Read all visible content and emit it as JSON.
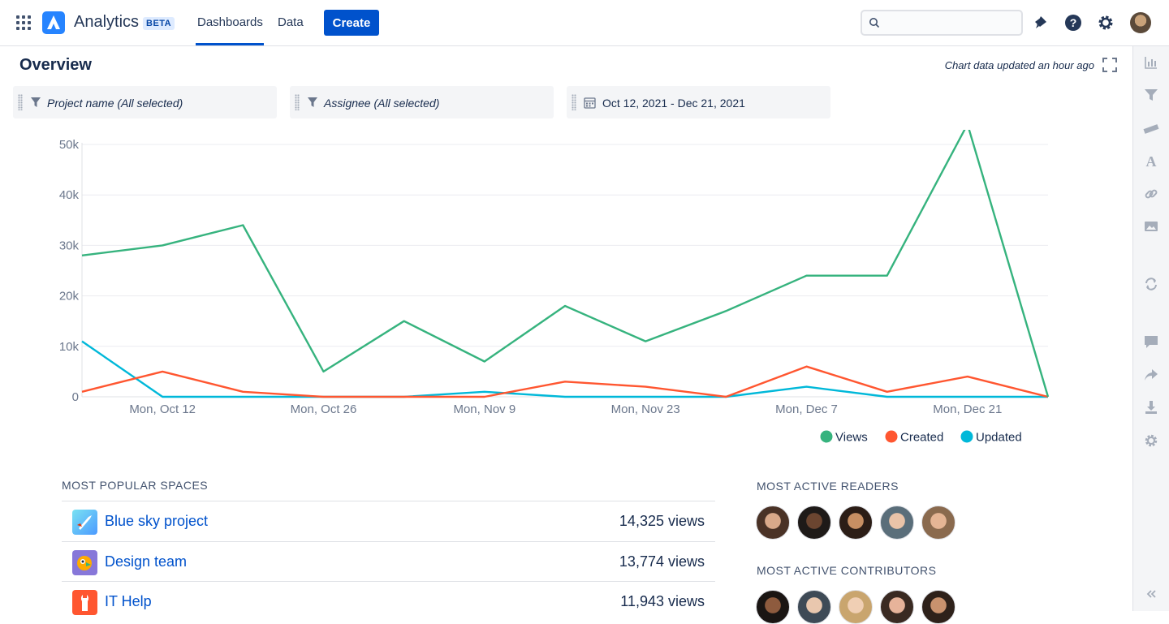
{
  "app": {
    "name": "Analytics",
    "badge": "BETA"
  },
  "nav": {
    "dashboards": "Dashboards",
    "data": "Data",
    "create": "Create"
  },
  "search": {
    "placeholder": ""
  },
  "page": {
    "title": "Overview",
    "updated": "Chart data updated an hour ago"
  },
  "filters": {
    "project": "Project name (All selected)",
    "assignee": "Assignee (All selected)",
    "date": "Oct 12, 2021 - Dec 21, 2021"
  },
  "colors": {
    "views": "#36B37E",
    "created": "#FF5630",
    "updated": "#00B8D9",
    "accent": "#0052CC"
  },
  "chart_data": {
    "type": "line",
    "title": "",
    "x": [
      "Oct 5",
      "Oct 12",
      "Oct 19",
      "Oct 26",
      "Nov 2",
      "Nov 9",
      "Nov 16",
      "Nov 23",
      "Nov 30",
      "Dec 7",
      "Dec 14",
      "Dec 21",
      "Dec 28"
    ],
    "xtick_labels": [
      "Mon, Oct 12",
      "Mon, Oct 26",
      "Mon, Nov 9",
      "Mon, Nov 23",
      "Mon, Dec 7",
      "Mon, Dec 21"
    ],
    "xtick_indices": [
      1,
      3,
      5,
      7,
      9,
      11
    ],
    "ytick_labels": [
      "0",
      "10k",
      "20k",
      "30k",
      "40k",
      "50k"
    ],
    "ylim": [
      0,
      50000
    ],
    "grid": true,
    "legend_position": "bottom-right",
    "series": [
      {
        "name": "Views",
        "color": "#36B37E",
        "values": [
          28000,
          30000,
          34000,
          5000,
          15000,
          7000,
          18000,
          11000,
          17000,
          24000,
          24000,
          54000,
          0
        ]
      },
      {
        "name": "Created",
        "color": "#FF5630",
        "values": [
          1000,
          5000,
          1000,
          0,
          0,
          0,
          3000,
          2000,
          0,
          6000,
          1000,
          4000,
          0
        ]
      },
      {
        "name": "Updated",
        "color": "#00B8D9",
        "values": [
          11000,
          0,
          0,
          0,
          0,
          1000,
          0,
          0,
          0,
          2000,
          0,
          0,
          0
        ]
      }
    ]
  },
  "popular_spaces": {
    "heading": "MOST POPULAR SPACES",
    "items": [
      {
        "name": "Blue sky project",
        "views": "14,325 views"
      },
      {
        "name": "Design team",
        "views": "13,774 views"
      },
      {
        "name": "IT Help",
        "views": "11,943 views"
      }
    ]
  },
  "readers": {
    "heading": "MOST ACTIVE READERS"
  },
  "contributors": {
    "heading": "MOST ACTIVE CONTRIBUTORS"
  }
}
